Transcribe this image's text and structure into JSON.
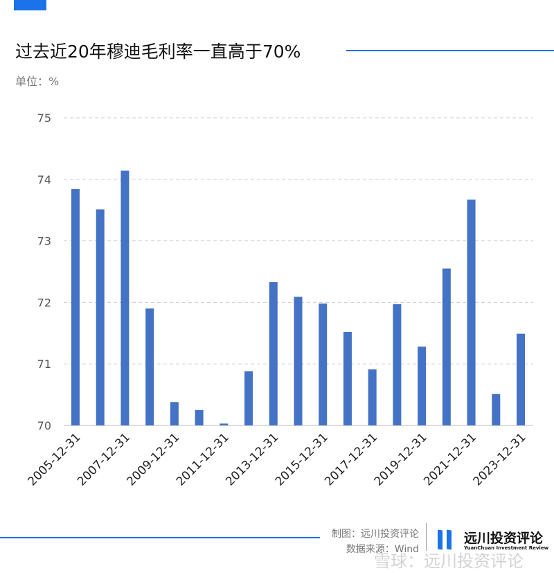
{
  "header": {
    "title": "过去近20年穆迪毛利率一直高于70%",
    "unit": "单位：%"
  },
  "footer": {
    "credit": "制图：远川投资评论",
    "source": "数据来源：Wind",
    "logo_cn": "远川投资评论",
    "logo_en": "YuanChuan Investment Review",
    "watermark": "雪球：远川投资评论"
  },
  "colors": {
    "bar": "#4472c4",
    "accent": "#1a73e8"
  },
  "chart_data": {
    "type": "bar",
    "title": "过去近20年穆迪毛利率一直高于70%",
    "ylabel": "单位：%",
    "ylim": [
      70,
      75
    ],
    "yticks": [
      70,
      71,
      72,
      73,
      74,
      75
    ],
    "grid": true,
    "categories": [
      "2005-12-31",
      "2006-12-31",
      "2007-12-31",
      "2008-12-31",
      "2009-12-31",
      "2010-12-31",
      "2011-12-31",
      "2012-12-31",
      "2013-12-31",
      "2014-12-31",
      "2015-12-31",
      "2016-12-31",
      "2017-12-31",
      "2018-12-31",
      "2019-12-31",
      "2020-12-31",
      "2021-12-31",
      "2022-12-31",
      "2023-12-31"
    ],
    "xtick_labels": [
      "2005-12-31",
      "2007-12-31",
      "2009-12-31",
      "2011-12-31",
      "2013-12-31",
      "2015-12-31",
      "2017-12-31",
      "2019-12-31",
      "2021-12-31",
      "2023-12-31"
    ],
    "values": [
      73.84,
      73.51,
      74.14,
      71.9,
      70.38,
      70.25,
      70.03,
      70.88,
      72.33,
      72.09,
      71.98,
      71.52,
      70.91,
      71.97,
      71.28,
      72.55,
      73.67,
      70.51,
      71.49
    ]
  }
}
